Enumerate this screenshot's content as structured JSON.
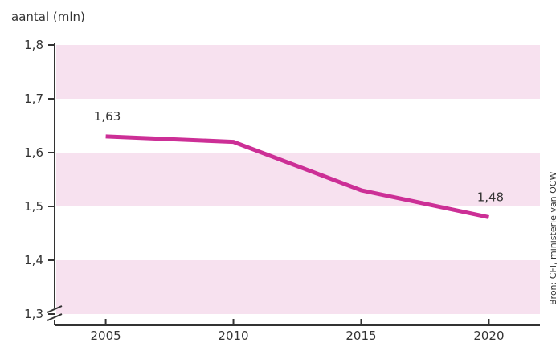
{
  "chart_data": {
    "type": "line",
    "ylabel": "aantal (mln)",
    "x": [
      2005,
      2010,
      2015,
      2020
    ],
    "x_tick_labels": [
      "2005",
      "2010",
      "2015",
      "2020"
    ],
    "series": [
      {
        "values": [
          1.63,
          1.62,
          1.53,
          1.48
        ]
      }
    ],
    "data_labels": [
      {
        "x": 2005,
        "text": "1,63"
      },
      {
        "x": 2020,
        "text": "1,48"
      }
    ],
    "y_ticks": [
      1.3,
      1.4,
      1.5,
      1.6,
      1.7,
      1.8
    ],
    "y_tick_labels": [
      "1,3",
      "1,4",
      "1,5",
      "1,6",
      "1,7",
      "1,8"
    ],
    "ylim": [
      1.3,
      1.8
    ],
    "xlim": [
      2003,
      2022
    ],
    "axis_break": true,
    "grid": false,
    "source": "Bron: CFI, ministerie van OCW",
    "colors": {
      "line": "#cc2f96",
      "band": "#f7e1ef",
      "axis": "#333333"
    }
  }
}
